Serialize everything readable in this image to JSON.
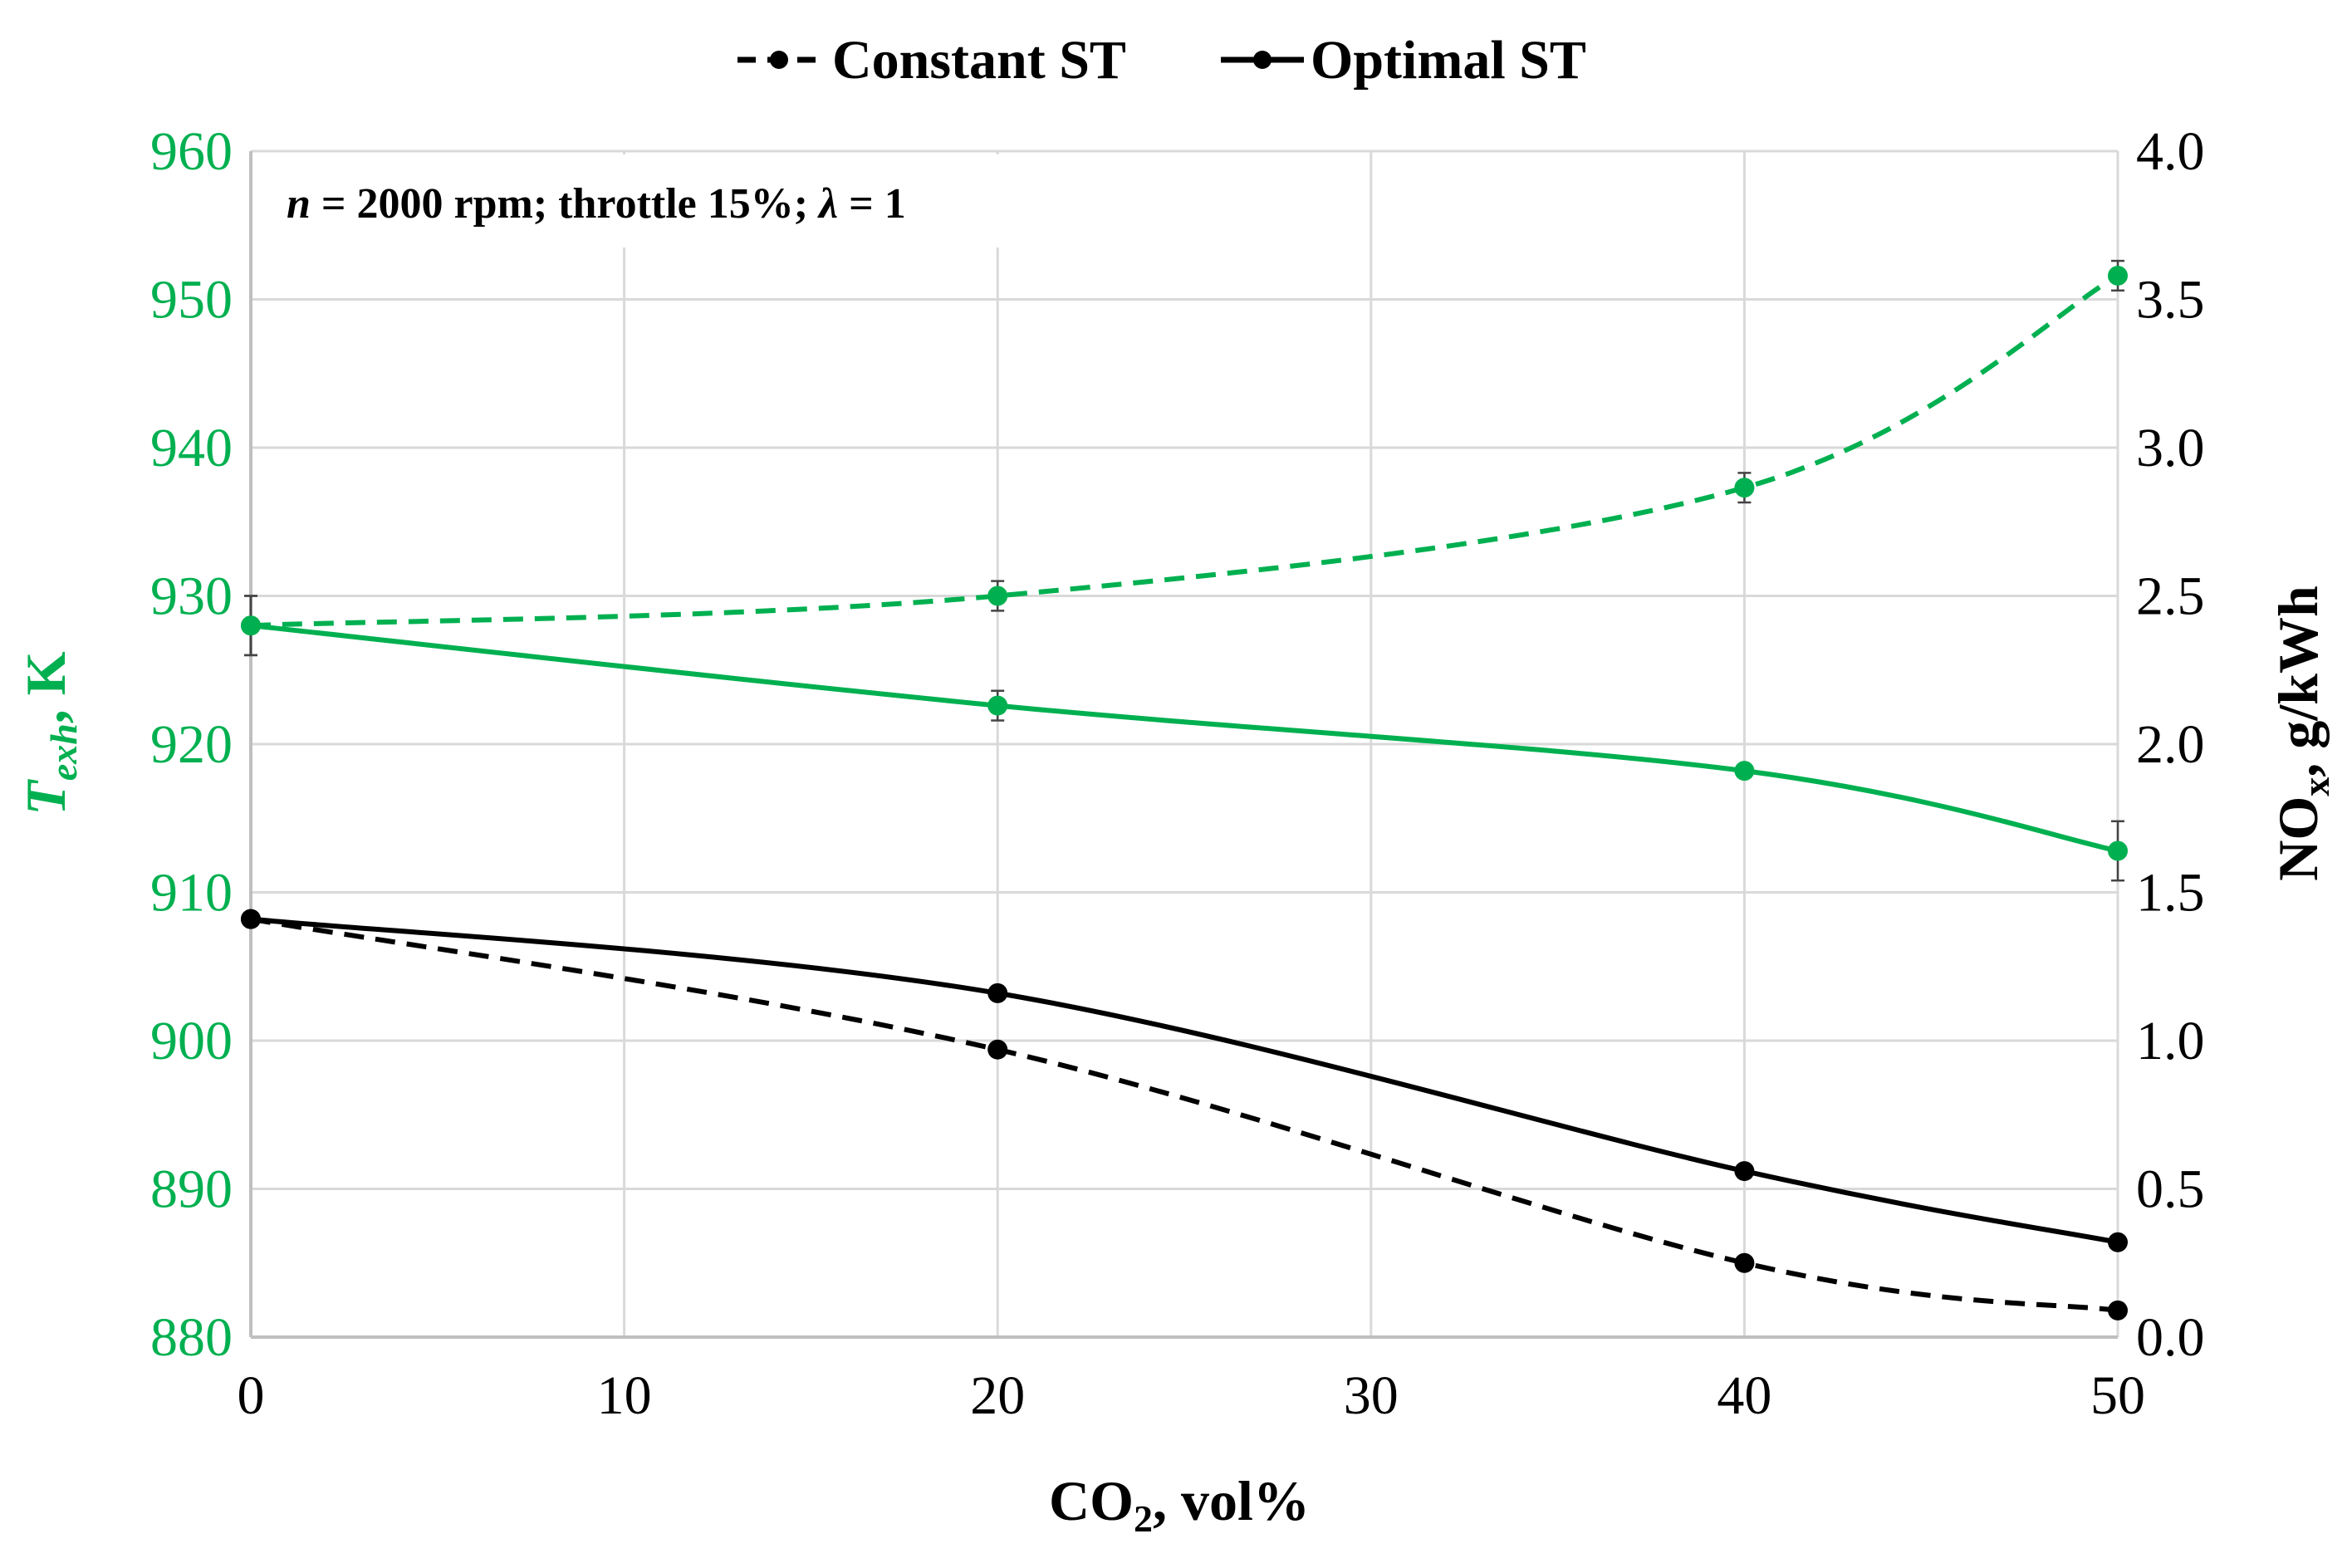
{
  "chart_data": {
    "type": "line",
    "title": "",
    "annotation": {
      "n_symbol": "n",
      "rest1": " = 2000 rpm; throttle 15%; ",
      "lambda_symbol": "λ",
      "rest2": " = 1"
    },
    "x_axis": {
      "label_prefix": "CO",
      "label_sub": "2",
      "label_suffix": ", vol%",
      "range": [
        0,
        50
      ],
      "ticks": [
        0,
        10,
        20,
        30,
        40,
        50
      ],
      "tick_labels": [
        "0",
        "10",
        "20",
        "30",
        "40",
        "50"
      ]
    },
    "y_left": {
      "label_main": "T",
      "label_sub": "exh",
      "label_suffix": ", K",
      "range": [
        880,
        960
      ],
      "ticks": [
        880,
        890,
        900,
        910,
        920,
        930,
        940,
        950,
        960
      ],
      "tick_labels": [
        "880",
        "890",
        "900",
        "910",
        "920",
        "930",
        "940",
        "950",
        "960"
      ],
      "color": "#00B050"
    },
    "y_right": {
      "label_prefix": "NO",
      "label_sub": "x",
      "label_suffix": ", g/kWh",
      "range": [
        0,
        4
      ],
      "ticks": [
        0,
        0.5,
        1,
        1.5,
        2,
        2.5,
        3,
        3.5,
        4
      ],
      "tick_labels": [
        "0.0",
        "0.5",
        "1.0",
        "1.5",
        "2.0",
        "2.5",
        "3.0",
        "3.5",
        "4.0"
      ],
      "color": "#000000"
    },
    "grid": true,
    "legend": {
      "position": "top-center",
      "entries": [
        {
          "label": "Constant ST",
          "style": "dashed"
        },
        {
          "label": "Optimal ST",
          "style": "solid"
        }
      ]
    },
    "series": [
      {
        "quantity": "T_exh",
        "strategy": "Constant ST",
        "axis": "left",
        "color": "#00B050",
        "style": "dashed",
        "x": [
          0,
          20,
          40,
          50
        ],
        "y": [
          928,
          930,
          937.3,
          951.6
        ],
        "error": [
          2,
          1,
          1,
          1
        ]
      },
      {
        "quantity": "T_exh",
        "strategy": "Optimal ST",
        "axis": "left",
        "color": "#00B050",
        "style": "solid",
        "x": [
          0,
          20,
          40,
          50
        ],
        "y": [
          928,
          922.6,
          918.2,
          912.8
        ],
        "error": [
          2,
          1,
          0,
          2
        ]
      },
      {
        "quantity": "NO_x",
        "strategy": "Constant ST",
        "axis": "right",
        "color": "#000000",
        "style": "dashed",
        "x": [
          0,
          20,
          40,
          50
        ],
        "y": [
          1.41,
          0.97,
          0.25,
          0.09
        ]
      },
      {
        "quantity": "NO_x",
        "strategy": "Optimal ST",
        "axis": "right",
        "color": "#000000",
        "style": "solid",
        "x": [
          0,
          20,
          40,
          50
        ],
        "y": [
          1.41,
          1.16,
          0.56,
          0.32
        ]
      }
    ]
  }
}
